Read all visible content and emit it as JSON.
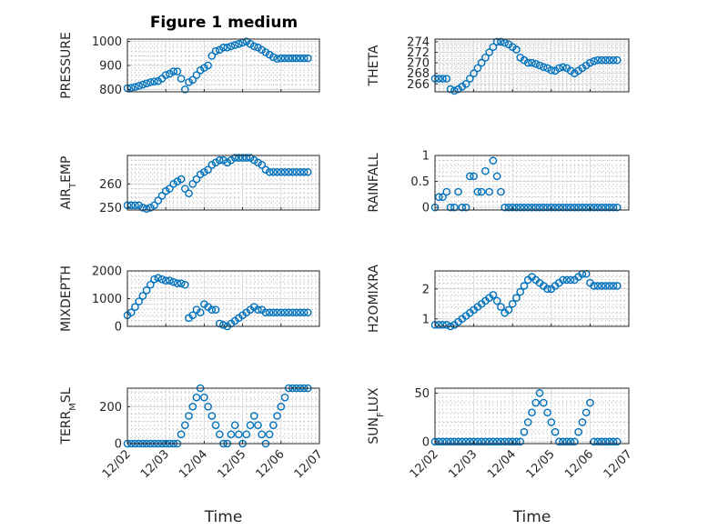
{
  "figure": {
    "title": "Figure 1 medium",
    "marker_color": "#0072BD",
    "x_ticks": [
      "12/02",
      "12/03",
      "12/04",
      "12/05",
      "12/06",
      "12/07"
    ],
    "x_label": "Time"
  },
  "chart_data": [
    {
      "type": "scatter",
      "ylabel": "PRESSURE",
      "yticks": [
        800,
        900,
        1000
      ],
      "ylim": [
        790,
        1010
      ],
      "x": [
        0,
        0.1,
        0.2,
        0.3,
        0.4,
        0.5,
        0.6,
        0.7,
        0.8,
        0.9,
        1.0,
        1.1,
        1.2,
        1.3,
        1.4,
        1.5,
        1.6,
        1.7,
        1.8,
        1.9,
        2.0,
        2.1,
        2.2,
        2.3,
        2.4,
        2.5,
        2.6,
        2.7,
        2.8,
        2.9,
        3.0,
        3.1,
        3.2,
        3.3,
        3.4,
        3.5,
        3.6,
        3.7,
        3.8,
        3.9,
        4.0,
        4.1,
        4.2,
        4.3,
        4.4,
        4.5,
        4.6,
        4.7
      ],
      "y": [
        805,
        807,
        810,
        815,
        820,
        825,
        830,
        833,
        835,
        845,
        860,
        865,
        875,
        875,
        845,
        800,
        830,
        840,
        860,
        880,
        890,
        900,
        940,
        960,
        965,
        975,
        975,
        980,
        985,
        990,
        995,
        1000,
        990,
        980,
        975,
        965,
        955,
        945,
        935,
        928,
        930,
        930,
        930,
        930,
        930,
        930,
        930,
        930
      ]
    },
    {
      "type": "scatter",
      "ylabel": "THETA",
      "yticks": [
        266,
        268,
        270,
        272,
        274
      ],
      "ylim": [
        264.5,
        274.5
      ],
      "x": [
        0,
        0.1,
        0.2,
        0.3,
        0.4,
        0.5,
        0.6,
        0.7,
        0.8,
        0.9,
        1.0,
        1.1,
        1.2,
        1.3,
        1.4,
        1.5,
        1.6,
        1.7,
        1.8,
        1.9,
        2.0,
        2.1,
        2.2,
        2.3,
        2.4,
        2.5,
        2.6,
        2.7,
        2.8,
        2.9,
        3.0,
        3.1,
        3.2,
        3.3,
        3.4,
        3.5,
        3.6,
        3.7,
        3.8,
        3.9,
        4.0,
        4.1,
        4.2,
        4.3,
        4.4,
        4.5,
        4.6,
        4.7
      ],
      "y": [
        267,
        267,
        267,
        267,
        265,
        264.7,
        265,
        265.5,
        266,
        267,
        268,
        269,
        270,
        271,
        272,
        273,
        274,
        274,
        273.8,
        273.5,
        273,
        272.5,
        271,
        270.5,
        270,
        270,
        269.8,
        269.5,
        269.2,
        269,
        268.6,
        268.5,
        269,
        269.2,
        269,
        268.5,
        268,
        268.5,
        269,
        269.5,
        270,
        270.3,
        270.5,
        270.5,
        270.5,
        270.5,
        270.5,
        270.5
      ]
    },
    {
      "type": "scatter",
      "ylabel": "AIR_TEMP",
      "yticks": [
        250,
        260
      ],
      "ylim": [
        249,
        272
      ],
      "x": [
        0,
        0.1,
        0.2,
        0.3,
        0.4,
        0.5,
        0.6,
        0.7,
        0.8,
        0.9,
        1.0,
        1.1,
        1.2,
        1.3,
        1.4,
        1.5,
        1.6,
        1.7,
        1.8,
        1.9,
        2.0,
        2.1,
        2.2,
        2.3,
        2.4,
        2.5,
        2.6,
        2.7,
        2.8,
        2.9,
        3.0,
        3.1,
        3.2,
        3.3,
        3.4,
        3.5,
        3.6,
        3.7,
        3.8,
        3.9,
        4.0,
        4.1,
        4.2,
        4.3,
        4.4,
        4.5,
        4.6,
        4.7
      ],
      "y": [
        251,
        251,
        251,
        251,
        250,
        249.5,
        250,
        251,
        253,
        255,
        257,
        258,
        260,
        261,
        262,
        258,
        256,
        260,
        262,
        264,
        265,
        266,
        268,
        269,
        270,
        270,
        269,
        270,
        271,
        271,
        271,
        271,
        271,
        270,
        269,
        268,
        266,
        265,
        265,
        265,
        265,
        265,
        265,
        265,
        265,
        265,
        265,
        265
      ]
    },
    {
      "type": "scatter",
      "ylabel": "RAINFALL",
      "yticks": [
        0,
        0.5,
        1
      ],
      "ylim": [
        -0.05,
        1.0
      ],
      "x": [
        0,
        0.1,
        0.2,
        0.3,
        0.4,
        0.5,
        0.6,
        0.7,
        0.8,
        0.9,
        1.0,
        1.1,
        1.2,
        1.3,
        1.4,
        1.5,
        1.6,
        1.7,
        1.8,
        1.9,
        2.0,
        2.1,
        2.2,
        2.3,
        2.4,
        2.5,
        2.6,
        2.7,
        2.8,
        2.9,
        3.0,
        3.1,
        3.2,
        3.3,
        3.4,
        3.5,
        3.6,
        3.7,
        3.8,
        3.9,
        4.0,
        4.1,
        4.2,
        4.3,
        4.4,
        4.5,
        4.6,
        4.7
      ],
      "y": [
        0,
        0.2,
        0.2,
        0.3,
        0,
        0,
        0.3,
        0,
        0,
        0.6,
        0.6,
        0.3,
        0.3,
        0.7,
        0.3,
        0.9,
        0.6,
        0.3,
        0,
        0,
        0,
        0,
        0,
        0,
        0,
        0,
        0,
        0,
        0,
        0,
        0,
        0,
        0,
        0,
        0,
        0,
        0,
        0,
        0,
        0,
        0,
        0,
        0,
        0,
        0,
        0,
        0,
        0
      ]
    },
    {
      "type": "scatter",
      "ylabel": "MIXDEPTH",
      "yticks": [
        0,
        1000,
        2000
      ],
      "ylim": [
        0,
        2000
      ],
      "x": [
        0,
        0.1,
        0.2,
        0.3,
        0.4,
        0.5,
        0.6,
        0.7,
        0.8,
        0.9,
        1.0,
        1.1,
        1.2,
        1.3,
        1.4,
        1.5,
        1.6,
        1.7,
        1.8,
        1.9,
        2.0,
        2.1,
        2.2,
        2.3,
        2.4,
        2.5,
        2.6,
        2.7,
        2.8,
        2.9,
        3.0,
        3.1,
        3.2,
        3.3,
        3.4,
        3.5,
        3.6,
        3.7,
        3.8,
        3.9,
        4.0,
        4.1,
        4.2,
        4.3,
        4.4,
        4.5,
        4.6,
        4.7
      ],
      "y": [
        400,
        500,
        700,
        900,
        1100,
        1300,
        1500,
        1700,
        1750,
        1700,
        1650,
        1650,
        1600,
        1550,
        1550,
        1500,
        300,
        400,
        600,
        500,
        800,
        700,
        600,
        600,
        100,
        50,
        0,
        100,
        200,
        300,
        400,
        500,
        600,
        700,
        600,
        600,
        500,
        500,
        500,
        500,
        500,
        500,
        500,
        500,
        500,
        500,
        500,
        500
      ]
    },
    {
      "type": "scatter",
      "ylabel": "H2OMIXRA",
      "yticks": [
        1,
        2
      ],
      "ylim": [
        0.75,
        2.6
      ],
      "x": [
        0,
        0.1,
        0.2,
        0.3,
        0.4,
        0.5,
        0.6,
        0.7,
        0.8,
        0.9,
        1.0,
        1.1,
        1.2,
        1.3,
        1.4,
        1.5,
        1.6,
        1.7,
        1.8,
        1.9,
        2.0,
        2.1,
        2.2,
        2.3,
        2.4,
        2.5,
        2.6,
        2.7,
        2.8,
        2.9,
        3.0,
        3.1,
        3.2,
        3.3,
        3.4,
        3.5,
        3.6,
        3.7,
        3.8,
        3.9,
        4.0,
        4.1,
        4.2,
        4.3,
        4.4,
        4.5,
        4.6,
        4.7
      ],
      "y": [
        0.8,
        0.8,
        0.8,
        0.8,
        0.75,
        0.8,
        0.9,
        1.0,
        1.1,
        1.2,
        1.3,
        1.4,
        1.5,
        1.6,
        1.7,
        1.8,
        1.6,
        1.4,
        1.2,
        1.3,
        1.5,
        1.7,
        1.9,
        2.1,
        2.3,
        2.4,
        2.3,
        2.2,
        2.1,
        2.0,
        2.0,
        2.1,
        2.2,
        2.3,
        2.3,
        2.3,
        2.3,
        2.4,
        2.5,
        2.5,
        2.2,
        2.1,
        2.1,
        2.1,
        2.1,
        2.1,
        2.1,
        2.1
      ]
    },
    {
      "type": "scatter",
      "ylabel": "TERR_MSL",
      "yticks": [
        0,
        200
      ],
      "ylim": [
        0,
        300
      ],
      "x": [
        0,
        0.1,
        0.2,
        0.3,
        0.4,
        0.5,
        0.6,
        0.7,
        0.8,
        0.9,
        1.0,
        1.1,
        1.2,
        1.3,
        1.4,
        1.5,
        1.6,
        1.7,
        1.8,
        1.9,
        2.0,
        2.1,
        2.2,
        2.3,
        2.4,
        2.5,
        2.6,
        2.7,
        2.8,
        2.9,
        3.0,
        3.1,
        3.2,
        3.3,
        3.4,
        3.5,
        3.6,
        3.7,
        3.8,
        3.9,
        4.0,
        4.1,
        4.2,
        4.3,
        4.4,
        4.5,
        4.6,
        4.7
      ],
      "y": [
        0,
        0,
        0,
        0,
        0,
        0,
        0,
        0,
        0,
        0,
        0,
        0,
        0,
        0,
        50,
        100,
        150,
        200,
        250,
        300,
        250,
        200,
        150,
        100,
        50,
        0,
        0,
        50,
        100,
        50,
        0,
        50,
        100,
        150,
        100,
        50,
        0,
        50,
        100,
        150,
        200,
        250,
        300,
        300,
        300,
        300,
        300,
        300
      ]
    },
    {
      "type": "scatter",
      "ylabel": "SUN_FLUX",
      "yticks": [
        0,
        50
      ],
      "ylim": [
        -2,
        55
      ],
      "x": [
        0,
        0.1,
        0.2,
        0.3,
        0.4,
        0.5,
        0.6,
        0.7,
        0.8,
        0.9,
        1.0,
        1.1,
        1.2,
        1.3,
        1.4,
        1.5,
        1.6,
        1.7,
        1.8,
        1.9,
        2.0,
        2.1,
        2.2,
        2.3,
        2.4,
        2.5,
        2.6,
        2.7,
        2.8,
        2.9,
        3.0,
        3.1,
        3.2,
        3.3,
        3.4,
        3.5,
        3.6,
        3.7,
        3.8,
        3.9,
        4.0,
        4.1,
        4.2,
        4.3,
        4.4,
        4.5,
        4.6,
        4.7
      ],
      "y": [
        0,
        0,
        0,
        0,
        0,
        0,
        0,
        0,
        0,
        0,
        0,
        0,
        0,
        0,
        0,
        0,
        0,
        0,
        0,
        0,
        0,
        0,
        0,
        10,
        20,
        30,
        40,
        50,
        40,
        30,
        20,
        10,
        0,
        0,
        0,
        0,
        0,
        10,
        20,
        30,
        40,
        0,
        0,
        0,
        0,
        0,
        0,
        0
      ]
    }
  ]
}
